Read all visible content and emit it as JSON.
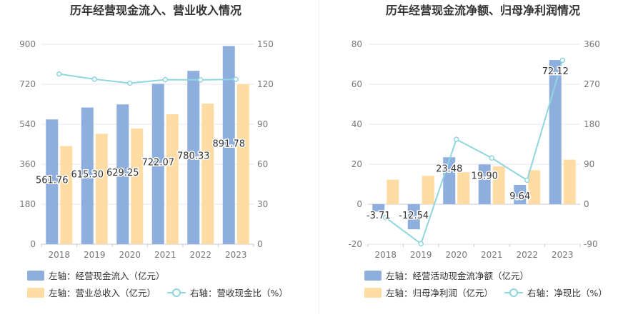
{
  "chart_data": [
    {
      "type": "bar",
      "title": "历年经营现金流入、营业收入情况",
      "categories": [
        "2018",
        "2019",
        "2020",
        "2021",
        "2022",
        "2023"
      ],
      "left_axis": {
        "ticks": [
          "0",
          "180",
          "360",
          "540",
          "720",
          "900"
        ],
        "ylim": [
          0,
          900
        ]
      },
      "right_axis": {
        "ticks": [
          "0",
          "30",
          "60",
          "90",
          "120",
          "150"
        ],
        "ylim": [
          0,
          150
        ]
      },
      "series": [
        {
          "name": "左轴：经营现金流入（亿元）",
          "axis": "left",
          "kind": "bar",
          "color": "#8eaede",
          "values": [
            561.76,
            615.3,
            629.25,
            722.07,
            780.33,
            891.78
          ],
          "labels": [
            "561.76",
            "615.30",
            "629.25",
            "722.07",
            "780.33",
            "891.78"
          ]
        },
        {
          "name": "左轴：营业总收入（亿元）",
          "axis": "left",
          "kind": "bar",
          "color": "#ffdca3",
          "values": [
            442,
            497,
            521,
            585,
            633,
            721
          ]
        },
        {
          "name": "右轴：营收现金比（%）",
          "axis": "right",
          "kind": "line",
          "color": "#8fd6de",
          "values": [
            127.7,
            123.8,
            120.8,
            123.4,
            123.3,
            123.7
          ]
        }
      ]
    },
    {
      "type": "bar",
      "title": "历年经营现金流净额、归母净利润情况",
      "categories": [
        "2018",
        "2019",
        "2020",
        "2021",
        "2022",
        "2023"
      ],
      "left_axis": {
        "ticks": [
          "-20",
          "0",
          "20",
          "40",
          "60",
          "80"
        ],
        "ylim": [
          -20,
          80
        ]
      },
      "right_axis": {
        "ticks": [
          "-90",
          "0",
          "90",
          "180",
          "270",
          "360"
        ],
        "ylim": [
          -90,
          360
        ]
      },
      "series": [
        {
          "name": "左轴：经营活动现金流净额（亿元）",
          "axis": "left",
          "kind": "bar",
          "color": "#8eaede",
          "values": [
            -3.71,
            -12.54,
            23.48,
            19.9,
            9.64,
            72.12
          ],
          "labels": [
            "-3.71",
            "-12.54",
            "23.48",
            "19.90",
            "9.64",
            "72.12"
          ]
        },
        {
          "name": "左轴：归母净利润（亿元）",
          "axis": "left",
          "kind": "bar",
          "color": "#ffdca3",
          "values": [
            12.3,
            14.2,
            16.0,
            19.0,
            17.0,
            22.3
          ]
        },
        {
          "name": "右轴：净现比（%）",
          "axis": "right",
          "kind": "line",
          "color": "#8fd6de",
          "values": [
            -30,
            -89,
            146,
            104,
            54,
            324
          ]
        }
      ]
    }
  ]
}
